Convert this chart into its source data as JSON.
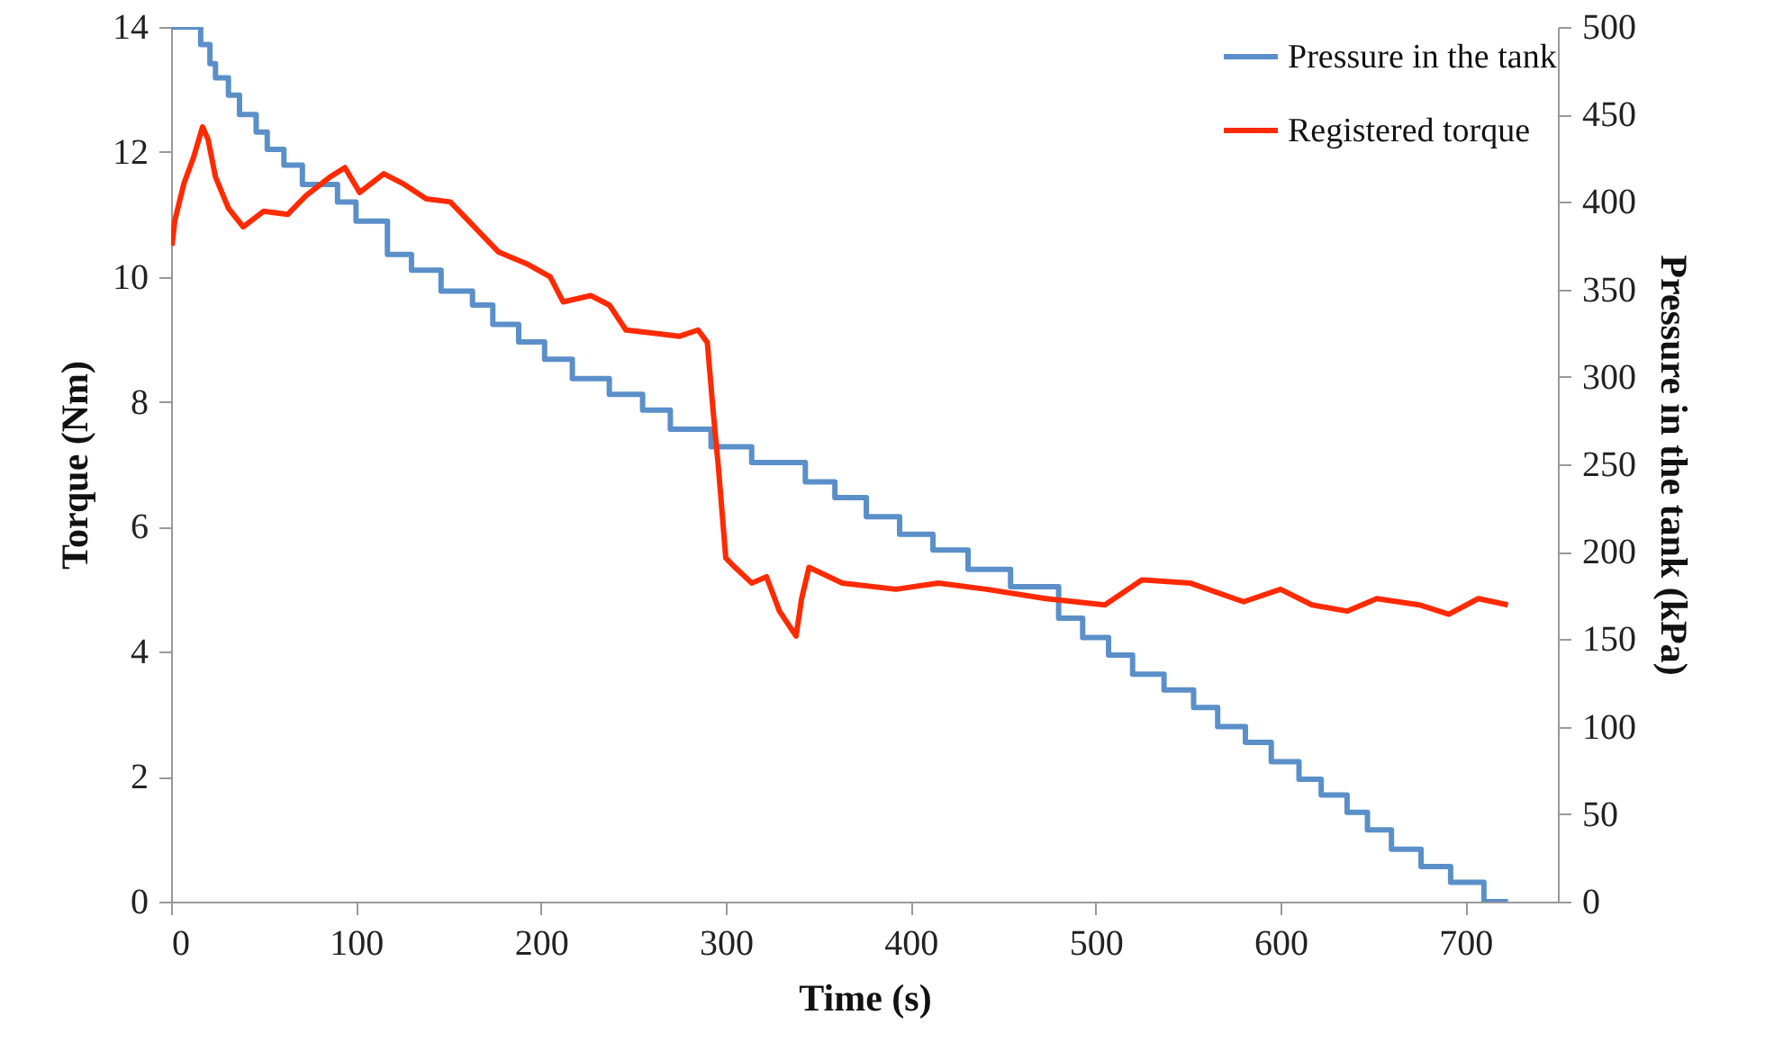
{
  "chart_data": {
    "type": "line",
    "xlabel": "Time (s)",
    "ylabel": "Torque (Nm)",
    "y2label": "Pressure in the tank (kPa)",
    "xlim": [
      0,
      750
    ],
    "xticks": [
      0,
      100,
      200,
      300,
      400,
      500,
      600,
      700
    ],
    "ylim": [
      0,
      14
    ],
    "yticks": [
      0,
      2,
      4,
      6,
      8,
      10,
      12,
      14
    ],
    "y2lim": [
      0,
      500
    ],
    "y2ticks": [
      0,
      50,
      100,
      150,
      200,
      250,
      300,
      350,
      400,
      450,
      500
    ],
    "legend": "top right",
    "series": [
      {
        "name": "Pressure in the tank",
        "type": "step",
        "axis": "y2",
        "color": "#5b8fc9",
        "x": [
          0,
          16,
          21,
          24,
          31,
          37,
          46,
          52,
          61,
          71,
          90,
          100,
          117,
          130,
          146,
          163,
          174,
          188,
          202,
          217,
          237,
          255,
          270,
          292,
          314,
          343,
          359,
          376,
          394,
          412,
          431,
          454,
          480,
          493,
          507,
          520,
          537,
          553,
          566,
          581,
          595,
          610,
          622,
          636,
          647,
          660,
          676,
          692,
          710,
          723
        ],
        "values": [
          500,
          490,
          479,
          471,
          461,
          450,
          440,
          430,
          421,
          410,
          400,
          389,
          370,
          361,
          349,
          341,
          330,
          320,
          310,
          299,
          290,
          281,
          270,
          260,
          251,
          240,
          231,
          220,
          210,
          201,
          190,
          180,
          162,
          151,
          141,
          130,
          121,
          111,
          100,
          91,
          80,
          70,
          61,
          51,
          41,
          30,
          20,
          11,
          0,
          0
        ]
      },
      {
        "name": "Registered torque",
        "axis": "y",
        "color": "#ff2a00",
        "x": [
          0.5,
          2,
          7,
          12,
          17,
          20,
          24,
          31,
          39,
          50,
          63,
          73,
          86,
          94,
          102,
          115,
          125,
          138,
          151,
          164,
          177,
          193,
          205,
          212,
          227,
          237,
          246,
          261,
          275,
          285,
          290,
          293,
          296,
          300,
          305,
          314,
          322,
          329,
          338,
          341,
          345,
          363,
          392,
          415,
          441,
          473,
          505,
          525,
          551,
          580,
          600,
          617,
          636,
          652,
          675,
          691,
          707,
          723
        ],
        "values": [
          10.5,
          10.9,
          11.5,
          11.9,
          12.4,
          12.2,
          11.6,
          11.1,
          10.8,
          11.05,
          11.0,
          11.3,
          11.6,
          11.75,
          11.35,
          11.65,
          11.5,
          11.25,
          11.2,
          10.8,
          10.4,
          10.2,
          10.0,
          9.6,
          9.7,
          9.55,
          9.15,
          9.1,
          9.05,
          9.15,
          8.95,
          7.9,
          6.95,
          5.5,
          5.35,
          5.1,
          5.2,
          4.65,
          4.25,
          4.85,
          5.35,
          5.1,
          5.0,
          5.1,
          5.0,
          4.85,
          4.75,
          5.15,
          5.1,
          4.8,
          5.0,
          4.75,
          4.65,
          4.85,
          4.75,
          4.6,
          4.85,
          4.75
        ]
      }
    ]
  }
}
